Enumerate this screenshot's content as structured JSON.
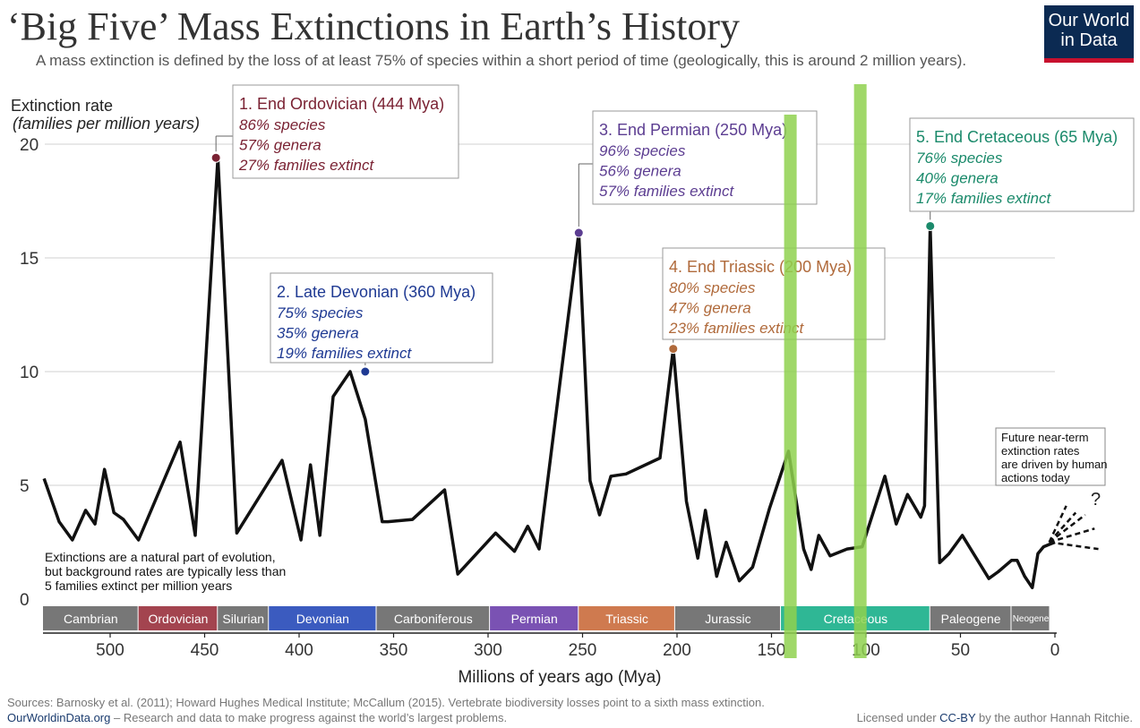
{
  "header": {
    "title": "‘Big Five’ Mass Extinctions in Earth’s History",
    "subtitle": "A mass extinction is defined by the loss of at least 75% of species within a short period of time (geologically, this is around 2 million years).",
    "logo_line1": "Our World",
    "logo_line2": "in Data"
  },
  "footer": {
    "sources": "Sources: Barnosky et al. (2011); Howard Hughes Medical Institute; McCallum (2015). Vertebrate biodiversity losses point to a sixth mass extinction.",
    "site": "OurWorldinData.org",
    "site_tail": " – Research and data to make progress against the world’s largest problems.",
    "license_pre": "Licensed under ",
    "license": "CC-BY",
    "license_post": " by the author Hannah Ritchie."
  },
  "colors": {
    "line": "#111111",
    "grid": "#d0d0d0",
    "highlight": "#8fd14f",
    "ordovician": "#7a2233",
    "devonian": "#1f3a93",
    "permian": "#5c3d91",
    "triassic": "#b06a3b",
    "cretaceous": "#1b8a6b"
  },
  "chart_data": {
    "type": "line",
    "title": "‘Big Five’ Mass Extinctions in Earth’s History",
    "ylabel": "Extinction rate",
    "ylabel_sub": "(families per million years)",
    "xlabel": "Millions of years ago (Mya)",
    "xlim": [
      535,
      0
    ],
    "ylim": [
      0,
      20
    ],
    "x_ticks": [
      500,
      450,
      400,
      350,
      300,
      250,
      200,
      150,
      100,
      50,
      0
    ],
    "y_ticks": [
      0,
      5,
      10,
      15,
      20
    ],
    "grid": true,
    "series": [
      {
        "x": [
          535,
          527,
          520,
          513,
          508,
          503,
          498,
          493,
          485,
          463,
          455,
          443,
          433,
          409,
          399,
          394,
          389,
          382,
          373,
          365,
          356,
          353,
          340,
          323,
          316,
          296,
          286,
          279,
          273,
          252,
          246,
          241,
          235,
          227,
          209,
          202,
          195,
          189,
          185,
          179,
          174,
          167,
          160,
          151,
          141,
          133,
          129,
          125,
          119,
          110,
          102,
          90,
          84,
          78,
          71,
          69,
          66,
          61,
          56,
          49,
          35,
          30,
          23,
          20,
          16,
          12,
          9,
          6,
          3,
          0
        ],
        "y": [
          5.3,
          3.4,
          2.6,
          3.9,
          3.3,
          5.7,
          3.8,
          3.5,
          2.6,
          6.9,
          2.8,
          19.4,
          2.9,
          6.1,
          2.6,
          5.9,
          2.8,
          8.9,
          10.0,
          7.9,
          3.4,
          3.4,
          3.5,
          4.8,
          1.1,
          2.9,
          2.1,
          3.2,
          2.2,
          16.1,
          5.2,
          3.7,
          5.4,
          5.5,
          6.2,
          11.0,
          4.3,
          1.8,
          3.9,
          1.0,
          2.5,
          0.8,
          1.4,
          4.0,
          6.5,
          2.2,
          1.3,
          2.8,
          1.9,
          2.2,
          2.3,
          5.4,
          3.3,
          4.6,
          3.6,
          4.1,
          16.4,
          1.6,
          2.0,
          2.8,
          0.9,
          1.2,
          1.7,
          1.7,
          1.0,
          0.5,
          2.0,
          2.3,
          2.4,
          2.5
        ]
      }
    ],
    "future_lines": {
      "from": [
        3,
        2.5
      ],
      "to": [
        [
          -6,
          4.1
        ],
        [
          -11,
          3.8
        ],
        [
          -16,
          3.7
        ],
        [
          -21,
          3.1
        ],
        [
          -23,
          2.2
        ]
      ],
      "mark": "?"
    },
    "events": [
      {
        "name": "1. End Ordovician (444 Mya)",
        "x": 444,
        "y": 19.4,
        "color": "#7a2233",
        "lines": [
          "86% species",
          "57% genera",
          "27% families extinct"
        ]
      },
      {
        "name": "2. Late Devonian (360 Mya)",
        "x": 365,
        "y": 10.0,
        "color": "#1f3a93",
        "lines": [
          "75% species",
          "35% genera",
          "19% families extinct"
        ]
      },
      {
        "name": "3. End Permian (250 Mya)",
        "x": 252,
        "y": 16.1,
        "color": "#5c3d91",
        "lines": [
          "96% species",
          "56% genera",
          "57% families extinct"
        ]
      },
      {
        "name": "4. End Triassic (200 Mya)",
        "x": 202,
        "y": 11.0,
        "color": "#b06a3b",
        "lines": [
          "80% species",
          "47% genera",
          "23% families extinct"
        ]
      },
      {
        "name": "5. End Cretaceous (65 Mya)",
        "x": 66,
        "y": 16.4,
        "color": "#1b8a6b",
        "lines": [
          "76% species",
          "40% genera",
          "17% families extinct"
        ]
      }
    ],
    "periods": [
      {
        "name": "Cambrian",
        "start": 541,
        "end": 485,
        "color": "#777777"
      },
      {
        "name": "Ordovician",
        "start": 485,
        "end": 443,
        "color": "#a3444f"
      },
      {
        "name": "Silurian",
        "start": 443,
        "end": 416,
        "color": "#777777"
      },
      {
        "name": "Devonian",
        "start": 416,
        "end": 359,
        "color": "#3b5bbf"
      },
      {
        "name": "Carboniferous",
        "start": 359,
        "end": 299,
        "color": "#777777"
      },
      {
        "name": "Permian",
        "start": 299,
        "end": 252,
        "color": "#7a52b3"
      },
      {
        "name": "Triassic",
        "start": 252,
        "end": 201,
        "color": "#cf7a4f"
      },
      {
        "name": "Jurassic",
        "start": 201,
        "end": 145,
        "color": "#777777"
      },
      {
        "name": "Cretaceous",
        "start": 145,
        "end": 66,
        "color": "#2fb795"
      },
      {
        "name": "Paleogene",
        "start": 66,
        "end": 23,
        "color": "#777777"
      },
      {
        "name": "Neogene",
        "start": 23,
        "end": 2.6,
        "color": "#777777"
      }
    ],
    "highlights": [
      140,
      103
    ],
    "annotations": {
      "natural": [
        "Extinctions are a natural part of evolution,",
        "but background rates are typically less than",
        "5 families extinct per million years"
      ],
      "future": [
        "Future near-term",
        "extinction rates",
        "are driven by human",
        "actions today"
      ]
    }
  }
}
